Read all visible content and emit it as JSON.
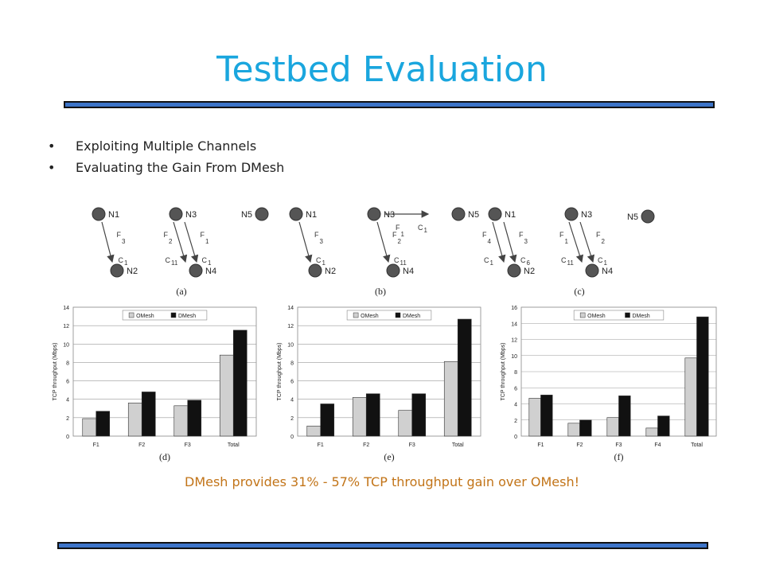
{
  "slide": {
    "title": "Testbed Evaluation",
    "bullets": [
      "Exploiting Multiple Channels",
      "Evaluating the Gain From DMesh"
    ],
    "conclusion": "DMesh provides  31% - 57% TCP throughput gain over OMesh!"
  },
  "colors": {
    "title": "#1aa6de",
    "rule": "#3d74c8",
    "conclusion": "#c27418",
    "omesh": "#d0d0d0",
    "dmesh": "#111111",
    "node": "#555555"
  },
  "topologies": [
    {
      "label": "(a)",
      "nodes": [
        "N1",
        "N2",
        "N3",
        "N4",
        "N5"
      ],
      "links": [
        {
          "from": "N1",
          "to": "N2",
          "flow": "F3",
          "channel": "C1"
        },
        {
          "from": "N3",
          "to": "N4",
          "flow": "F2",
          "channel": "C11"
        },
        {
          "from": "N3",
          "to": "N4",
          "flow": "F1",
          "channel": "C1"
        }
      ]
    },
    {
      "label": "(b)",
      "nodes": [
        "N1",
        "N2",
        "N3",
        "N4",
        "N5"
      ],
      "links": [
        {
          "from": "N1",
          "to": "N2",
          "flow": "F3",
          "channel": "C1"
        },
        {
          "from": "N3",
          "to": "N5",
          "flow": "F1",
          "channel": "C1"
        },
        {
          "from": "N3",
          "to": "N4",
          "flow": "F2",
          "channel": "C11"
        }
      ]
    },
    {
      "label": "(c)",
      "nodes": [
        "N1",
        "N2",
        "N3",
        "N4",
        "N5"
      ],
      "links": [
        {
          "from": "N1",
          "to": "N2",
          "flow": "F4",
          "channel": "C1"
        },
        {
          "from": "N1",
          "to": "N2",
          "flow": "F3",
          "channel": "C6"
        },
        {
          "from": "N3",
          "to": "N4",
          "flow": "F1",
          "channel": "C11"
        },
        {
          "from": "N3",
          "to": "N4",
          "flow": "F2",
          "channel": "C1"
        }
      ]
    }
  ],
  "chart_data": [
    {
      "type": "bar",
      "caption": "(d)",
      "ylabel": "TCP throughput (Mbps)",
      "ylim": [
        0,
        14
      ],
      "yticks": [
        0,
        2,
        4,
        6,
        8,
        10,
        12,
        14
      ],
      "grid": true,
      "legend_position": "top",
      "categories": [
        "F1",
        "F2",
        "F3",
        "Total"
      ],
      "series": [
        {
          "name": "OMesh",
          "values": [
            1.9,
            3.6,
            3.3,
            8.8
          ]
        },
        {
          "name": "DMesh",
          "values": [
            2.7,
            4.8,
            3.9,
            11.5
          ]
        }
      ]
    },
    {
      "type": "bar",
      "caption": "(e)",
      "ylabel": "TCP throughput (Mbps)",
      "ylim": [
        0,
        14
      ],
      "yticks": [
        0,
        2,
        4,
        6,
        8,
        10,
        12,
        14
      ],
      "grid": true,
      "legend_position": "top",
      "categories": [
        "F1",
        "F2",
        "F3",
        "Total"
      ],
      "series": [
        {
          "name": "OMesh",
          "values": [
            1.1,
            4.2,
            2.8,
            8.1
          ]
        },
        {
          "name": "DMesh",
          "values": [
            3.5,
            4.6,
            4.6,
            12.7
          ]
        }
      ]
    },
    {
      "type": "bar",
      "caption": "(f)",
      "ylabel": "TCP throughput (Mbps)",
      "ylim": [
        0,
        16
      ],
      "yticks": [
        0,
        2,
        4,
        6,
        8,
        10,
        12,
        14,
        16
      ],
      "grid": true,
      "legend_position": "top",
      "categories": [
        "F1",
        "F2",
        "F3",
        "F4",
        "Total"
      ],
      "series": [
        {
          "name": "OMesh",
          "values": [
            4.7,
            1.6,
            2.3,
            1.0,
            9.7
          ]
        },
        {
          "name": "DMesh",
          "values": [
            5.1,
            2.0,
            5.0,
            2.5,
            14.8
          ]
        }
      ]
    }
  ]
}
